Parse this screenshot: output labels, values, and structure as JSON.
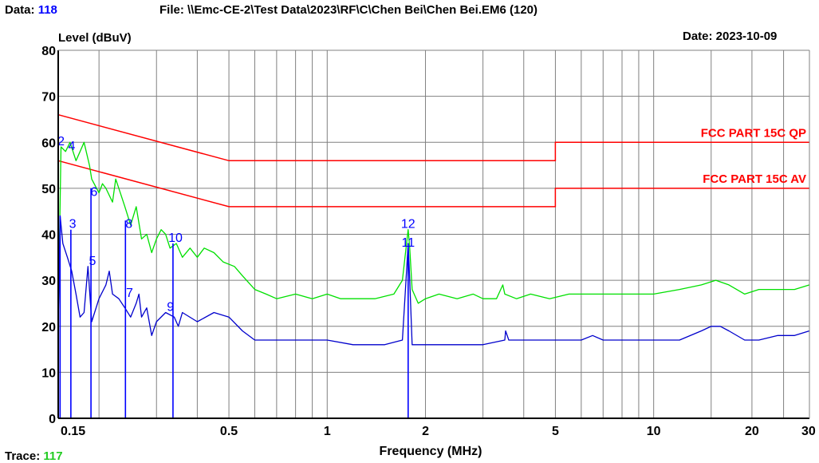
{
  "header": {
    "data_label": "Data:",
    "data_value": "118",
    "file_text": "File: \\\\Emc-CE-2\\Test Data\\2023\\RF\\C\\Chen Bei\\Chen Bei.EM6  (120)",
    "date_text": "Date: 2023-10-09",
    "trace_label": "Trace:",
    "trace_value": "117"
  },
  "chart_data": {
    "type": "line",
    "ylabel": "Level (dBuV)",
    "xlabel": "Frequency (MHz)",
    "x_scale": "log",
    "xlim": [
      0.15,
      30
    ],
    "ylim": [
      0,
      80
    ],
    "grid": true,
    "x_ticks": [
      {
        "value": 0.15,
        "label": "0.15"
      },
      {
        "value": 0.5,
        "label": "0.5"
      },
      {
        "value": 1,
        "label": "1"
      },
      {
        "value": 2,
        "label": "2"
      },
      {
        "value": 5,
        "label": "5"
      },
      {
        "value": 10,
        "label": "10"
      },
      {
        "value": 20,
        "label": "20"
      },
      {
        "value": 30,
        "label": "30"
      }
    ],
    "y_ticks": [
      0,
      10,
      20,
      30,
      40,
      50,
      60,
      70,
      80
    ],
    "colors": {
      "qp_trace": "#00e000",
      "av_trace": "#0000cc",
      "limit": "#ff0000",
      "marker": "#0000ff",
      "grid": "#808080"
    },
    "limit_lines": [
      {
        "name": "FCC PART 15C QP",
        "points": [
          [
            0.15,
            66
          ],
          [
            0.5,
            56
          ],
          [
            5,
            56
          ],
          [
            5,
            60
          ],
          [
            30,
            60
          ]
        ]
      },
      {
        "name": "FCC PART 15C AV",
        "points": [
          [
            0.15,
            56
          ],
          [
            0.5,
            46
          ],
          [
            5,
            46
          ],
          [
            5,
            50
          ],
          [
            30,
            50
          ]
        ]
      }
    ],
    "series": [
      {
        "key": "qp",
        "values": [
          [
            0.15,
            21
          ],
          [
            0.153,
            59
          ],
          [
            0.158,
            58
          ],
          [
            0.163,
            60
          ],
          [
            0.17,
            56
          ],
          [
            0.175,
            58
          ],
          [
            0.18,
            60
          ],
          [
            0.187,
            55
          ],
          [
            0.19,
            52
          ],
          [
            0.2,
            49
          ],
          [
            0.205,
            51
          ],
          [
            0.21,
            50
          ],
          [
            0.22,
            47
          ],
          [
            0.225,
            52
          ],
          [
            0.23,
            50
          ],
          [
            0.24,
            46
          ],
          [
            0.25,
            42
          ],
          [
            0.26,
            46
          ],
          [
            0.27,
            39
          ],
          [
            0.28,
            40
          ],
          [
            0.29,
            36
          ],
          [
            0.3,
            39
          ],
          [
            0.31,
            41
          ],
          [
            0.32,
            40
          ],
          [
            0.33,
            37
          ],
          [
            0.345,
            38
          ],
          [
            0.36,
            35
          ],
          [
            0.38,
            37
          ],
          [
            0.4,
            35
          ],
          [
            0.42,
            37
          ],
          [
            0.45,
            36
          ],
          [
            0.48,
            34
          ],
          [
            0.52,
            33
          ],
          [
            0.55,
            31
          ],
          [
            0.6,
            28
          ],
          [
            0.65,
            27
          ],
          [
            0.7,
            26
          ],
          [
            0.8,
            27
          ],
          [
            0.9,
            26
          ],
          [
            1.0,
            27
          ],
          [
            1.1,
            26
          ],
          [
            1.2,
            26
          ],
          [
            1.4,
            26
          ],
          [
            1.6,
            27
          ],
          [
            1.7,
            30
          ],
          [
            1.75,
            38
          ],
          [
            1.77,
            41
          ],
          [
            1.79,
            37
          ],
          [
            1.82,
            28
          ],
          [
            1.9,
            25
          ],
          [
            2.0,
            26
          ],
          [
            2.2,
            27
          ],
          [
            2.5,
            26
          ],
          [
            2.8,
            27
          ],
          [
            3.0,
            26
          ],
          [
            3.3,
            26
          ],
          [
            3.45,
            29
          ],
          [
            3.5,
            27
          ],
          [
            3.8,
            26
          ],
          [
            4.2,
            27
          ],
          [
            4.8,
            26
          ],
          [
            5.5,
            27
          ],
          [
            6.5,
            27
          ],
          [
            8,
            27
          ],
          [
            10,
            27
          ],
          [
            12,
            28
          ],
          [
            14,
            29
          ],
          [
            15.5,
            30
          ],
          [
            17,
            29
          ],
          [
            19,
            27
          ],
          [
            21,
            28
          ],
          [
            24,
            28
          ],
          [
            27,
            28
          ],
          [
            30,
            29
          ]
        ]
      },
      {
        "key": "av",
        "values": [
          [
            0.15,
            20
          ],
          [
            0.152,
            44
          ],
          [
            0.155,
            38
          ],
          [
            0.16,
            35
          ],
          [
            0.165,
            32
          ],
          [
            0.17,
            27
          ],
          [
            0.175,
            22
          ],
          [
            0.18,
            23
          ],
          [
            0.185,
            33
          ],
          [
            0.19,
            21
          ],
          [
            0.2,
            26
          ],
          [
            0.21,
            29
          ],
          [
            0.215,
            32
          ],
          [
            0.22,
            27
          ],
          [
            0.23,
            26
          ],
          [
            0.24,
            24
          ],
          [
            0.25,
            22
          ],
          [
            0.26,
            25
          ],
          [
            0.265,
            27
          ],
          [
            0.27,
            22
          ],
          [
            0.28,
            24
          ],
          [
            0.29,
            18
          ],
          [
            0.3,
            21
          ],
          [
            0.32,
            23
          ],
          [
            0.34,
            22
          ],
          [
            0.35,
            20
          ],
          [
            0.36,
            23
          ],
          [
            0.4,
            21
          ],
          [
            0.45,
            23
          ],
          [
            0.5,
            22
          ],
          [
            0.55,
            19
          ],
          [
            0.6,
            17
          ],
          [
            0.7,
            17
          ],
          [
            0.8,
            17
          ],
          [
            0.9,
            17
          ],
          [
            1.0,
            17
          ],
          [
            1.2,
            16
          ],
          [
            1.5,
            16
          ],
          [
            1.7,
            17
          ],
          [
            1.75,
            32
          ],
          [
            1.77,
            38
          ],
          [
            1.79,
            30
          ],
          [
            1.82,
            16
          ],
          [
            1.9,
            16
          ],
          [
            2.0,
            16
          ],
          [
            2.5,
            16
          ],
          [
            3.0,
            16
          ],
          [
            3.5,
            17
          ],
          [
            3.52,
            19
          ],
          [
            3.6,
            17
          ],
          [
            4,
            17
          ],
          [
            5,
            17
          ],
          [
            6,
            17
          ],
          [
            6.5,
            18
          ],
          [
            7,
            17
          ],
          [
            8,
            17
          ],
          [
            10,
            17
          ],
          [
            12,
            17
          ],
          [
            14,
            19
          ],
          [
            15,
            20
          ],
          [
            16,
            20
          ],
          [
            17,
            19
          ],
          [
            19,
            17
          ],
          [
            21,
            17
          ],
          [
            24,
            18
          ],
          [
            27,
            18
          ],
          [
            30,
            19
          ]
        ]
      }
    ],
    "spikes": [
      {
        "x": 0.152,
        "y": 44
      },
      {
        "x": 0.164,
        "y": 41
      },
      {
        "x": 0.189,
        "y": 50
      },
      {
        "x": 0.241,
        "y": 43
      },
      {
        "x": 0.337,
        "y": 38
      },
      {
        "x": 1.77,
        "y": 38
      }
    ],
    "markers": [
      {
        "label": "2",
        "x": 0.153,
        "y": 59
      },
      {
        "label": "3",
        "x": 0.166,
        "y": 41
      },
      {
        "label": "4",
        "x": 0.165,
        "y": 58
      },
      {
        "label": "5",
        "x": 0.191,
        "y": 33
      },
      {
        "label": "6",
        "x": 0.193,
        "y": 48
      },
      {
        "label": "7",
        "x": 0.248,
        "y": 26
      },
      {
        "label": "8",
        "x": 0.247,
        "y": 41
      },
      {
        "label": "9",
        "x": 0.331,
        "y": 23
      },
      {
        "label": "10",
        "x": 0.343,
        "y": 38
      },
      {
        "label": "11",
        "x": 1.77,
        "y": 37
      },
      {
        "label": "12",
        "x": 1.77,
        "y": 41
      }
    ]
  }
}
